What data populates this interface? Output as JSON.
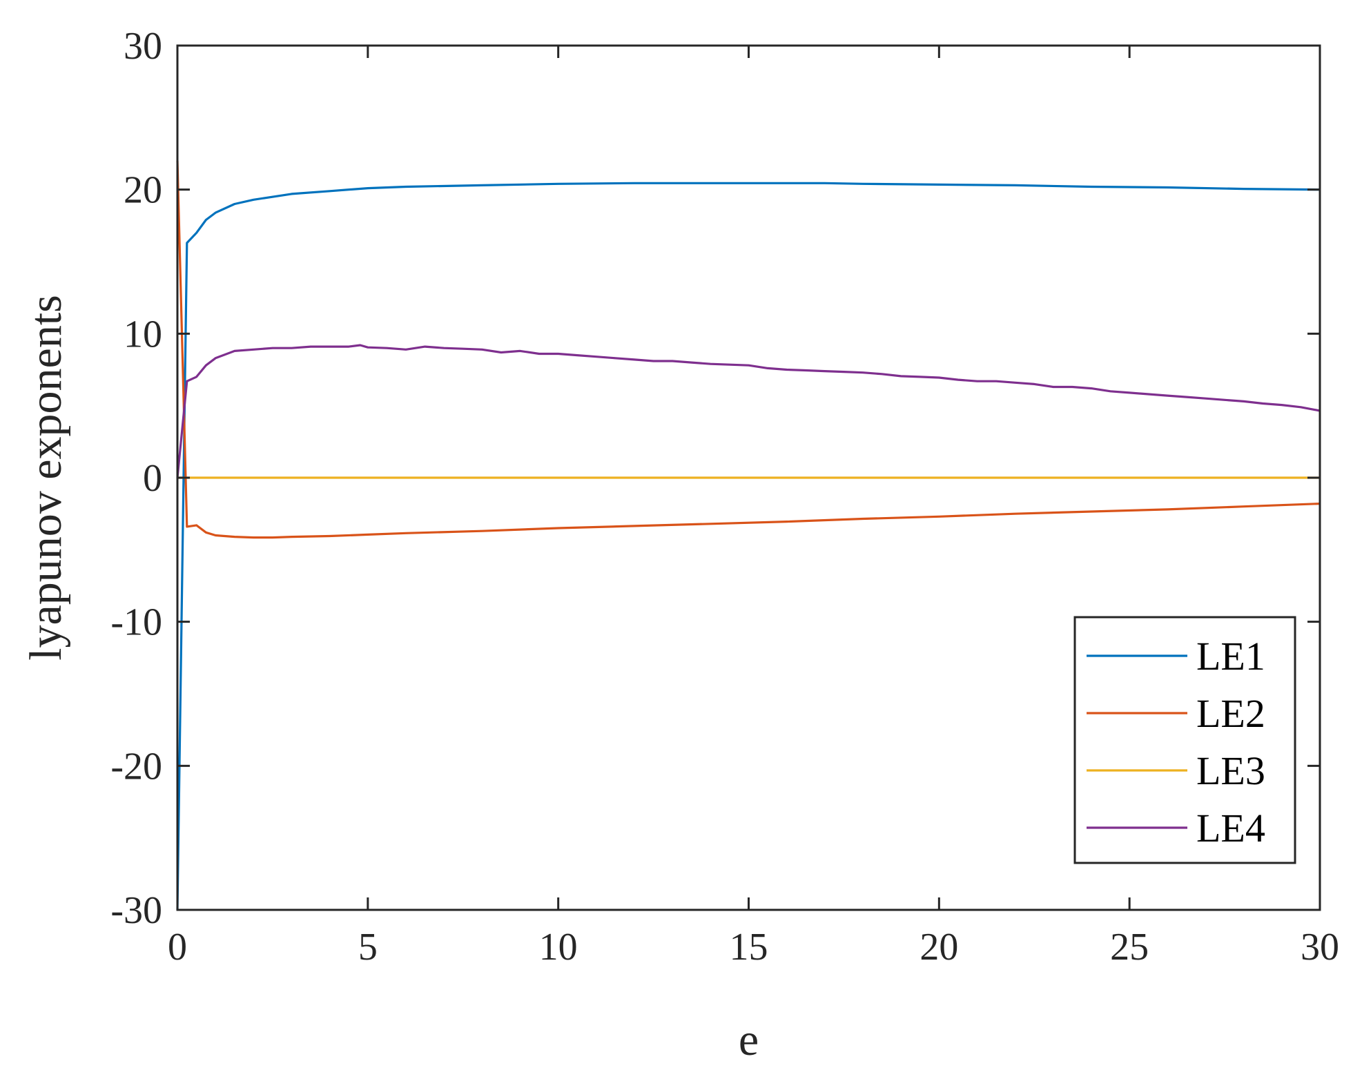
{
  "chart_data": {
    "type": "line",
    "title": "",
    "xlabel": "e",
    "ylabel": "lyapunov exponents",
    "xlim": [
      0,
      30
    ],
    "ylim": [
      -30,
      30
    ],
    "xticks": [
      0,
      5,
      10,
      15,
      20,
      25,
      30
    ],
    "yticks": [
      -30,
      -20,
      -10,
      0,
      10,
      20,
      30
    ],
    "xtick_labels": [
      "0",
      "5",
      "10",
      "15",
      "20",
      "25",
      "30"
    ],
    "ytick_labels": [
      "-30",
      "-20",
      "-10",
      "0",
      "10",
      "20",
      "30"
    ],
    "grid": false,
    "legend_position": "bottom-right",
    "series": [
      {
        "name": "LE1",
        "color": "#0072BD",
        "x": [
          0,
          0.25,
          0.5,
          0.75,
          1,
          1.5,
          2,
          3,
          4,
          5,
          6,
          8,
          10,
          12,
          14,
          16,
          17,
          18,
          20,
          22,
          24,
          26,
          28,
          30
        ],
        "y": [
          -30,
          16.3,
          17,
          17.9,
          18.4,
          19,
          19.3,
          19.7,
          19.9,
          20.1,
          20.2,
          20.3,
          20.4,
          20.45,
          20.45,
          20.45,
          20.45,
          20.4,
          20.35,
          20.3,
          20.2,
          20.15,
          20.05,
          20
        ]
      },
      {
        "name": "LE2",
        "color": "#D95319",
        "x": [
          0,
          0.25,
          0.5,
          0.75,
          1,
          1.5,
          2,
          2.5,
          3,
          4,
          5,
          6,
          8,
          10,
          12,
          14,
          16,
          18,
          20,
          22,
          24,
          26,
          28,
          30
        ],
        "y": [
          22,
          -3.4,
          -3.3,
          -3.8,
          -4,
          -4.1,
          -4.15,
          -4.15,
          -4.1,
          -4.05,
          -3.95,
          -3.85,
          -3.7,
          -3.5,
          -3.35,
          -3.2,
          -3.05,
          -2.85,
          -2.7,
          -2.5,
          -2.35,
          -2.2,
          -2,
          -1.8
        ]
      },
      {
        "name": "LE3",
        "color": "#EDB120",
        "x": [
          0,
          30
        ],
        "y": [
          0,
          0
        ]
      },
      {
        "name": "LE4",
        "color": "#7E2F8E",
        "x": [
          0,
          0.25,
          0.5,
          0.75,
          1,
          1.5,
          2,
          2.5,
          3,
          3.5,
          4,
          4.5,
          4.8,
          5,
          5.5,
          6,
          6.5,
          7,
          7.5,
          8,
          8.5,
          9,
          9.5,
          10,
          10.5,
          11,
          11.5,
          12,
          12.5,
          13,
          13.5,
          14,
          14.5,
          15,
          15.5,
          16,
          16.5,
          17,
          17.5,
          18,
          18.5,
          19,
          19.5,
          20,
          20.5,
          21,
          21.5,
          22,
          22.5,
          23,
          23.5,
          24,
          24.5,
          25,
          25.5,
          26,
          26.5,
          27,
          27.5,
          28,
          28.5,
          29,
          29.5,
          30
        ],
        "y": [
          0,
          6.7,
          7,
          7.8,
          8.3,
          8.8,
          8.9,
          9,
          9,
          9.1,
          9.1,
          9.1,
          9.2,
          9.05,
          9,
          8.9,
          9.1,
          9,
          8.95,
          8.9,
          8.7,
          8.8,
          8.6,
          8.6,
          8.5,
          8.4,
          8.3,
          8.2,
          8.1,
          8.1,
          8,
          7.9,
          7.85,
          7.8,
          7.6,
          7.5,
          7.45,
          7.4,
          7.35,
          7.3,
          7.2,
          7.05,
          7,
          6.95,
          6.8,
          6.7,
          6.7,
          6.6,
          6.5,
          6.3,
          6.3,
          6.2,
          6,
          5.9,
          5.8,
          5.7,
          5.6,
          5.5,
          5.4,
          5.3,
          5.15,
          5.05,
          4.9,
          4.65
        ]
      }
    ]
  }
}
